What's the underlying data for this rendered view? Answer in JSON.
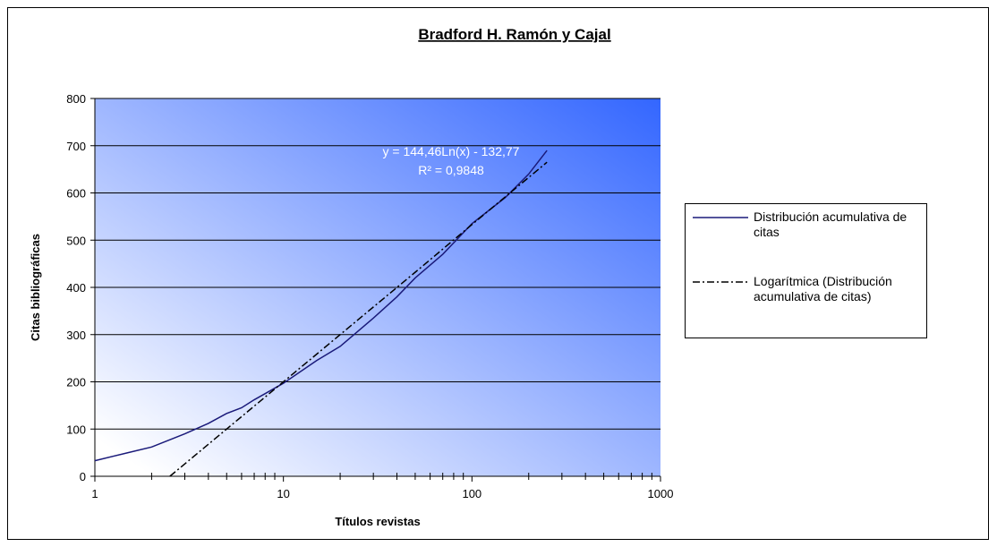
{
  "chart_data": {
    "type": "line",
    "title": "Bradford H. Ramón y Cajal",
    "xlabel": "Títulos revistas",
    "ylabel": "Citas bibliográficas",
    "log_x": true,
    "xlim": [
      1,
      1000
    ],
    "xticks": [
      1,
      10,
      100,
      1000
    ],
    "xminorticks": [
      2,
      3,
      4,
      5,
      6,
      7,
      8,
      9,
      20,
      30,
      40,
      50,
      60,
      70,
      80,
      90,
      200,
      300,
      400,
      500,
      600,
      700,
      800,
      900
    ],
    "ylim": [
      0,
      800
    ],
    "yticks": [
      0,
      100,
      200,
      300,
      400,
      500,
      600,
      700,
      800
    ],
    "grid": true,
    "legend": "right",
    "annotations": [
      "y = 144,46Ln(x) - 132,77",
      "R² = 0,9848"
    ],
    "series": [
      {
        "name": "Distribución acumulativa de citas",
        "color": "#1a1a7a",
        "dash": "solid",
        "x": [
          1,
          1.5,
          2,
          3,
          4,
          5,
          6,
          7,
          8,
          10,
          15,
          20,
          30,
          40,
          50,
          70,
          100,
          150,
          200,
          250
        ],
        "values": [
          33,
          50,
          62,
          90,
          112,
          133,
          145,
          162,
          175,
          197,
          245,
          275,
          335,
          380,
          420,
          470,
          535,
          590,
          640,
          690
        ]
      },
      {
        "name": "Logarítmica (Distribución acumulativa de citas)",
        "color": "#000000",
        "dash": "dashdot",
        "x": [
          2.5,
          5,
          10,
          20,
          50,
          100,
          250
        ],
        "values": [
          0,
          100,
          200,
          300,
          432,
          533,
          665
        ]
      }
    ]
  }
}
